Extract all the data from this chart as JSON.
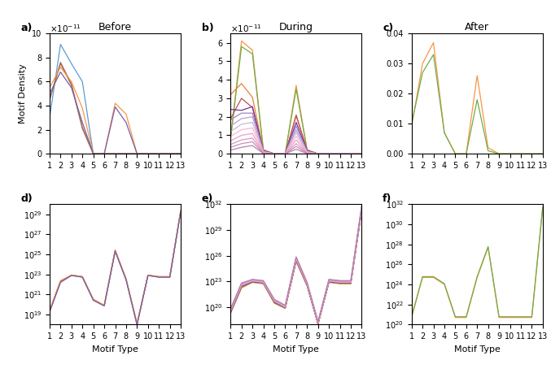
{
  "motif_types": [
    1,
    2,
    3,
    4,
    5,
    6,
    7,
    8,
    9,
    10,
    11,
    12,
    13
  ],
  "titles": [
    "Before",
    "During",
    "After"
  ],
  "panel_labels_top": [
    "a)",
    "b)",
    "c)"
  ],
  "panel_labels_bot": [
    "d)",
    "e)",
    "f)"
  ],
  "xlabel": "Motif Type",
  "ylabel": "Motif Density",
  "colors_before": [
    "#5B9BD5",
    "#C0504D",
    "#9B7653",
    "#F79646",
    "#7B5EA7"
  ],
  "colors_during": [
    "#F79646",
    "#70AD47",
    "#ED7D31",
    "#C0504D",
    "#7030A0",
    "#9E86C8",
    "#B8A0D0",
    "#C8B8DC",
    "#FFB3CC",
    "#E8A0C8",
    "#D898C0",
    "#C890B8",
    "#B880B0"
  ],
  "colors_after": [
    "#F79646",
    "#70AD47"
  ],
  "before_linear": [
    [
      3.0,
      9.1,
      7.5,
      6.0,
      0.0,
      0.0,
      0.0,
      0.0,
      0.0,
      0.0,
      0.0,
      0.0,
      0.0
    ],
    [
      4.5,
      7.6,
      5.8,
      2.2,
      0.0,
      0.0,
      0.0,
      0.0,
      0.0,
      0.0,
      0.0,
      0.0,
      0.0
    ],
    [
      4.5,
      7.5,
      5.7,
      2.1,
      0.0,
      0.0,
      0.0,
      0.0,
      0.0,
      0.0,
      0.0,
      0.0,
      0.0
    ],
    [
      5.5,
      7.2,
      6.0,
      3.8,
      0.0,
      0.0,
      4.2,
      3.3,
      0.0,
      0.0,
      0.0,
      0.0,
      0.0
    ],
    [
      5.0,
      6.8,
      5.5,
      2.6,
      0.0,
      0.0,
      3.9,
      2.6,
      0.0,
      0.0,
      0.0,
      0.0,
      0.0
    ]
  ],
  "during_linear": [
    [
      0.84,
      6.1,
      5.6,
      0.22,
      0.0,
      0.0,
      3.7,
      0.22,
      0.0,
      0.0,
      0.0,
      0.0,
      0.0
    ],
    [
      0.8,
      5.8,
      5.4,
      0.2,
      0.0,
      0.0,
      3.5,
      0.2,
      0.0,
      0.0,
      0.0,
      0.0,
      0.0
    ],
    [
      3.2,
      3.8,
      3.05,
      0.2,
      0.0,
      0.0,
      2.05,
      0.2,
      0.0,
      0.0,
      0.0,
      0.0,
      0.0
    ],
    [
      1.9,
      3.0,
      2.5,
      0.18,
      0.0,
      0.0,
      2.1,
      0.18,
      0.0,
      0.0,
      0.0,
      0.0,
      0.0
    ],
    [
      2.4,
      2.35,
      2.55,
      0.16,
      0.0,
      0.0,
      1.7,
      0.16,
      0.0,
      0.0,
      0.0,
      0.0,
      0.0
    ],
    [
      1.85,
      2.2,
      2.2,
      0.14,
      0.0,
      0.0,
      1.5,
      0.14,
      0.0,
      0.0,
      0.0,
      0.0,
      0.0
    ],
    [
      1.5,
      1.9,
      2.0,
      0.12,
      0.0,
      0.0,
      1.3,
      0.12,
      0.0,
      0.0,
      0.0,
      0.0,
      0.0
    ],
    [
      1.2,
      1.6,
      1.7,
      0.1,
      0.0,
      0.0,
      1.15,
      0.1,
      0.0,
      0.0,
      0.0,
      0.0,
      0.0
    ],
    [
      0.95,
      1.3,
      1.4,
      0.08,
      0.0,
      0.0,
      0.95,
      0.08,
      0.0,
      0.0,
      0.0,
      0.0,
      0.0
    ],
    [
      0.7,
      1.0,
      1.1,
      0.06,
      0.0,
      0.0,
      0.75,
      0.06,
      0.0,
      0.0,
      0.0,
      0.0,
      0.0
    ],
    [
      0.5,
      0.75,
      0.85,
      0.04,
      0.0,
      0.0,
      0.55,
      0.04,
      0.0,
      0.0,
      0.0,
      0.0,
      0.0
    ],
    [
      0.35,
      0.55,
      0.65,
      0.02,
      0.0,
      0.0,
      0.4,
      0.02,
      0.0,
      0.0,
      0.0,
      0.0,
      0.0
    ],
    [
      0.2,
      0.35,
      0.45,
      0.01,
      0.0,
      0.0,
      0.25,
      0.01,
      0.0,
      0.0,
      0.0,
      0.0,
      0.0
    ]
  ],
  "after_linear": [
    [
      0.009,
      0.03,
      0.037,
      0.007,
      0.0,
      0.0,
      0.026,
      0.002,
      0.0,
      0.0,
      0.0,
      0.0,
      0.0
    ],
    [
      0.01,
      0.027,
      0.033,
      0.007,
      0.0,
      0.0,
      0.018,
      0.001,
      0.0,
      0.0,
      0.0,
      0.0,
      0.0
    ]
  ],
  "before_log": [
    [
      2e+19,
      1.8e+22,
      8e+22,
      5.5e+22,
      2.8e+20,
      7.5e+19,
      2.2e+25,
      3e+22,
      1e+18,
      8e+22,
      5.5e+22,
      5.5e+22,
      2e+29
    ],
    [
      2.2e+19,
      2e+22,
      8.2e+22,
      5.7e+22,
      3e+20,
      7.8e+19,
      2.4e+25,
      3.2e+22,
      1.1e+18,
      8.2e+22,
      5.7e+22,
      5.7e+22,
      2.2e+29
    ],
    [
      2.4e+19,
      2.2e+22,
      8.4e+22,
      5.9e+22,
      3.2e+20,
      8.1e+19,
      2.6e+25,
      3.4e+22,
      1.2e+18,
      8.4e+22,
      5.9e+22,
      5.9e+22,
      2.4e+29
    ],
    [
      2.6e+19,
      2.4e+22,
      8.6e+22,
      6.1e+22,
      3.4e+20,
      8.4e+19,
      2.8e+25,
      3.6e+22,
      1.3e+18,
      8.6e+22,
      6.1e+22,
      6.1e+22,
      2.6e+29
    ],
    [
      1.8e+19,
      1.6e+22,
      7.8e+22,
      5.3e+22,
      2.6e+20,
      7.2e+19,
      2e+25,
      2.8e+22,
      9e+17,
      7.8e+22,
      5.3e+22,
      5.3e+22,
      1.8e+29
    ]
  ],
  "during_log": [
    [
      2e+19,
      1.8e+22,
      8e+22,
      5.5e+22,
      3e+20,
      7.5e+19,
      2.2e+25,
      3e+22,
      1e+18,
      8e+22,
      5.5e+22,
      5.5e+22,
      2e+31
    ],
    [
      2.2e+19,
      2e+22,
      8.5e+22,
      6e+22,
      3.3e+20,
      8e+19,
      2.5e+25,
      3.3e+22,
      1.1e+18,
      8.5e+22,
      6e+22,
      6e+22,
      2.2e+31
    ],
    [
      2.5e+19,
      2.3e+22,
      9e+22,
      6.5e+22,
      3.6e+20,
      8.5e+19,
      2.8e+25,
      3.6e+22,
      1.2e+18,
      9e+22,
      6.5e+22,
      6.5e+22,
      2.5e+31
    ],
    [
      2.8e+19,
      2.6e+22,
      9.5e+22,
      7e+22,
      4e+20,
      9e+19,
      3.1e+25,
      3.9e+22,
      1.3e+18,
      9.5e+22,
      7e+22,
      7e+22,
      2.8e+31
    ],
    [
      3.2e+19,
      3e+22,
      1e+23,
      7.5e+22,
      4.5e+20,
      9.5e+19,
      3.5e+25,
      4.3e+22,
      1.4e+18,
      1e+23,
      7.5e+22,
      7.5e+22,
      3.2e+31
    ],
    [
      3.6e+19,
      3.4e+22,
      1.1e+23,
      8e+22,
      5e+20,
      1e+20,
      4e+25,
      4.7e+22,
      1.5e+18,
      1.1e+23,
      8e+22,
      8e+22,
      3.6e+31
    ],
    [
      4e+19,
      3.8e+22,
      1.2e+23,
      8.5e+22,
      5.5e+20,
      1.1e+20,
      4.5e+25,
      5.1e+22,
      1.6e+18,
      1.2e+23,
      8.5e+22,
      8.5e+22,
      4e+31
    ],
    [
      4.5e+19,
      4.3e+22,
      1.3e+23,
      9e+22,
      6e+20,
      1.2e+20,
      5e+25,
      5.6e+22,
      1.7e+18,
      1.3e+23,
      9e+22,
      9e+22,
      4.5e+31
    ],
    [
      5e+19,
      4.8e+22,
      1.4e+23,
      9.5e+22,
      6.5e+20,
      1.3e+20,
      5.5e+25,
      6.1e+22,
      1.8e+18,
      1.4e+23,
      9.5e+22,
      9.5e+22,
      5e+31
    ],
    [
      5.5e+19,
      5.3e+22,
      1.5e+23,
      1e+23,
      7e+20,
      1.4e+20,
      6e+25,
      6.6e+22,
      1.9e+18,
      1.5e+23,
      1e+23,
      1e+23,
      5.5e+31
    ],
    [
      6e+19,
      5.8e+22,
      1.6e+23,
      1.1e+23,
      7.5e+20,
      1.5e+20,
      6.5e+25,
      7.1e+22,
      2e+18,
      1.6e+23,
      1.1e+23,
      1.1e+23,
      6e+31
    ],
    [
      6.5e+19,
      6.3e+22,
      1.7e+23,
      1.2e+23,
      8e+20,
      1.6e+20,
      7e+25,
      7.6e+22,
      2.1e+18,
      1.7e+23,
      1.2e+23,
      1.2e+23,
      6.5e+31
    ],
    [
      7e+19,
      6.8e+22,
      1.8e+23,
      1.3e+23,
      8.5e+20,
      1.7e+20,
      7.5e+25,
      8.1e+22,
      2.2e+18,
      1.8e+23,
      1.3e+23,
      1.3e+23,
      7e+31
    ]
  ],
  "after_log": [
    [
      5e+20,
      5e+24,
      5e+24,
      1e+24,
      5e+20,
      5e+20,
      5e+24,
      5e+27,
      5e+20,
      5e+20,
      5e+20,
      5e+20,
      5e+31
    ],
    [
      6e+20,
      6e+24,
      6e+24,
      1.2e+24,
      6e+20,
      6e+20,
      6e+24,
      6e+27,
      6e+20,
      6e+20,
      6e+20,
      6e+20,
      6e+31
    ]
  ],
  "ylim_a": [
    0,
    1e-10
  ],
  "ylim_b": [
    0,
    6.5e-11
  ],
  "ylim_c": [
    0,
    0.04
  ],
  "ylim_d_lo": 1e+18,
  "ylim_d_hi": 1e+30,
  "ylim_e_lo": 1e+18,
  "ylim_e_hi": 1e+32,
  "ylim_f_lo": 1e+20,
  "ylim_f_hi": 1e+32,
  "scale_lin": 1e-11
}
